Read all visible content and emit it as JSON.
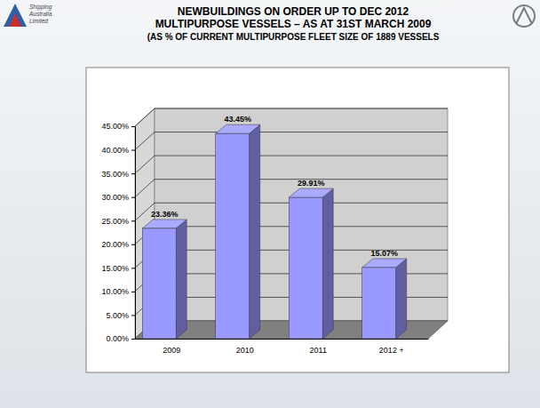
{
  "logo": [
    "Shipping",
    "Australia",
    "Limited"
  ],
  "chart_data": {
    "type": "bar",
    "title": "NEWBUILDINGS ON ORDER UP TO DEC 2012",
    "subtitle": [
      "MULTIPURPOSE VESSELS – AS AT 31ST MARCH 2009",
      "(AS % OF CURRENT MULTIPURPOSE FLEET SIZE OF 1889 VESSELS"
    ],
    "categories": [
      "2009",
      "2010",
      "2011",
      "2012 +"
    ],
    "values": [
      23.36,
      43.45,
      29.91,
      15.07
    ],
    "value_labels": [
      "23.36%",
      "43.45%",
      "29.91%",
      "15.07%"
    ],
    "color": "#9999ff",
    "ylim": [
      0,
      45
    ],
    "yticks": [
      {
        "value": 0,
        "label": "0.00%"
      },
      {
        "value": 5,
        "label": "5.00%"
      },
      {
        "value": 10,
        "label": "10.00%"
      },
      {
        "value": 15,
        "label": "15.00%"
      },
      {
        "value": 20,
        "label": "20.00%"
      },
      {
        "value": 25,
        "label": "25.00%"
      },
      {
        "value": 30,
        "label": "30.00%"
      },
      {
        "value": 35,
        "label": "35.00%"
      },
      {
        "value": 40,
        "label": "40.00%"
      },
      {
        "value": 45,
        "label": "45.00%"
      }
    ],
    "grid": true,
    "data_labels": true
  }
}
